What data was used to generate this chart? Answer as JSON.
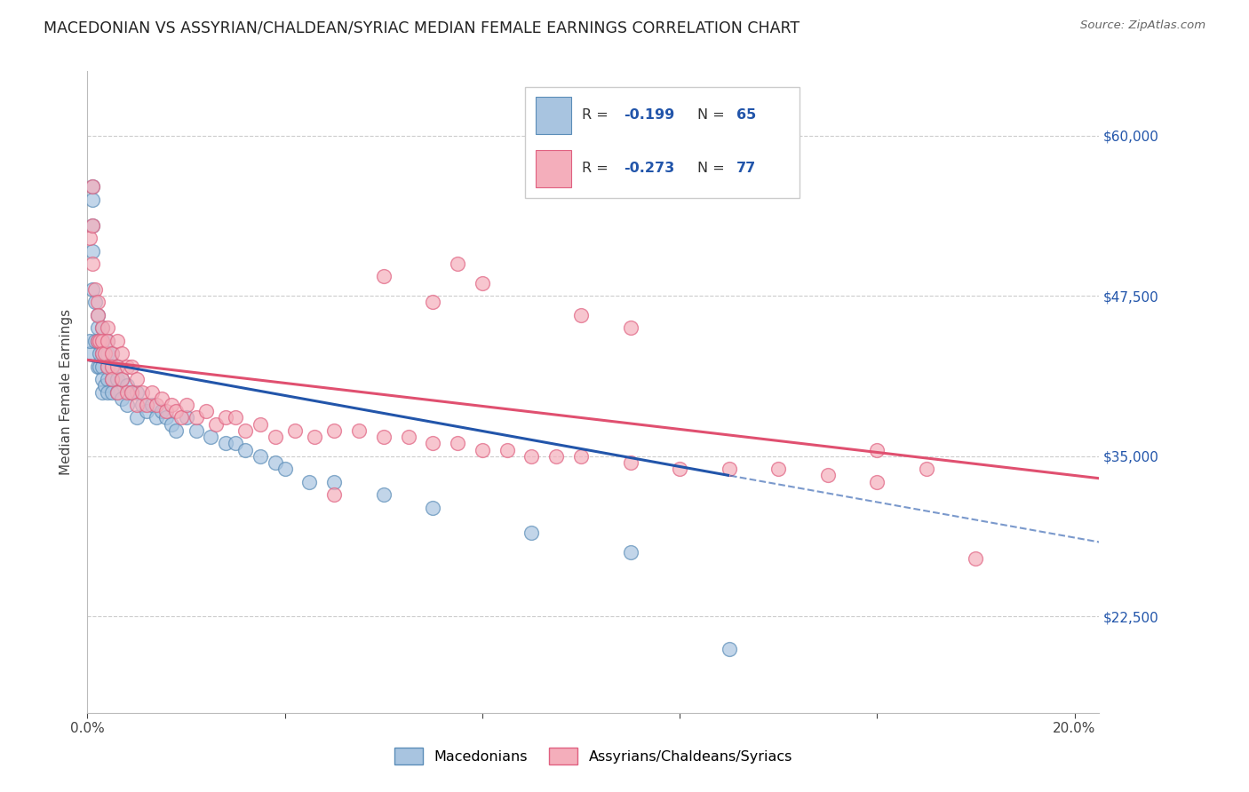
{
  "title": "MACEDONIAN VS ASSYRIAN/CHALDEAN/SYRIAC MEDIAN FEMALE EARNINGS CORRELATION CHART",
  "source": "Source: ZipAtlas.com",
  "ylabel": "Median Female Earnings",
  "xlim": [
    0.0,
    0.205
  ],
  "ylim": [
    15000,
    65000
  ],
  "yticks": [
    22500,
    35000,
    47500,
    60000
  ],
  "ytick_labels": [
    "$22,500",
    "$35,000",
    "$47,500",
    "$60,000"
  ],
  "xticks": [
    0.0,
    0.04,
    0.08,
    0.12,
    0.16,
    0.2
  ],
  "xtick_labels": [
    "0.0%",
    "",
    "",
    "",
    "",
    "20.0%"
  ],
  "legend_r1": "-0.199",
  "legend_n1": "65",
  "legend_r2": "-0.273",
  "legend_n2": "77",
  "legend_label1": "Macedonians",
  "legend_label2": "Assyrians/Chaldeans/Syriacs",
  "blue_color": "#A8C4E0",
  "pink_color": "#F4AEBB",
  "blue_edge_color": "#5B8DB8",
  "pink_edge_color": "#E06080",
  "blue_line_color": "#2255AA",
  "pink_line_color": "#E05070",
  "blue_x": [
    0.0005,
    0.0005,
    0.001,
    0.001,
    0.001,
    0.001,
    0.001,
    0.0015,
    0.0015,
    0.002,
    0.002,
    0.002,
    0.002,
    0.0025,
    0.0025,
    0.003,
    0.003,
    0.003,
    0.003,
    0.003,
    0.003,
    0.0035,
    0.004,
    0.004,
    0.004,
    0.004,
    0.004,
    0.005,
    0.005,
    0.005,
    0.005,
    0.006,
    0.006,
    0.006,
    0.007,
    0.007,
    0.008,
    0.008,
    0.009,
    0.01,
    0.01,
    0.011,
    0.012,
    0.013,
    0.014,
    0.015,
    0.016,
    0.017,
    0.018,
    0.02,
    0.022,
    0.025,
    0.028,
    0.03,
    0.032,
    0.035,
    0.038,
    0.04,
    0.045,
    0.05,
    0.06,
    0.07,
    0.09,
    0.11,
    0.13
  ],
  "blue_y": [
    43000,
    44000,
    56000,
    55000,
    53000,
    51000,
    48000,
    47000,
    44000,
    46000,
    45000,
    44000,
    42000,
    43000,
    42000,
    45000,
    44000,
    43000,
    42000,
    41000,
    40000,
    40500,
    44000,
    43000,
    42000,
    41000,
    40000,
    43000,
    42000,
    41000,
    40000,
    42000,
    41000,
    40000,
    41000,
    39500,
    40500,
    39000,
    40000,
    40000,
    38000,
    39000,
    38500,
    39000,
    38000,
    38500,
    38000,
    37500,
    37000,
    38000,
    37000,
    36500,
    36000,
    36000,
    35500,
    35000,
    34500,
    34000,
    33000,
    33000,
    32000,
    31000,
    29000,
    27500,
    20000
  ],
  "pink_x": [
    0.0005,
    0.001,
    0.001,
    0.001,
    0.0015,
    0.002,
    0.002,
    0.002,
    0.0025,
    0.003,
    0.003,
    0.003,
    0.0035,
    0.004,
    0.004,
    0.004,
    0.005,
    0.005,
    0.005,
    0.006,
    0.006,
    0.006,
    0.007,
    0.007,
    0.008,
    0.008,
    0.009,
    0.009,
    0.01,
    0.01,
    0.011,
    0.012,
    0.013,
    0.014,
    0.015,
    0.016,
    0.017,
    0.018,
    0.019,
    0.02,
    0.022,
    0.024,
    0.026,
    0.028,
    0.03,
    0.032,
    0.035,
    0.038,
    0.042,
    0.046,
    0.05,
    0.055,
    0.06,
    0.065,
    0.07,
    0.075,
    0.08,
    0.085,
    0.09,
    0.095,
    0.1,
    0.11,
    0.12,
    0.13,
    0.14,
    0.15,
    0.16,
    0.17,
    0.05,
    0.06,
    0.07,
    0.075,
    0.08,
    0.1,
    0.11,
    0.16,
    0.18
  ],
  "pink_y": [
    52000,
    56000,
    53000,
    50000,
    48000,
    47000,
    46000,
    44000,
    44000,
    45000,
    44000,
    43000,
    43000,
    45000,
    44000,
    42000,
    43000,
    42000,
    41000,
    44000,
    42000,
    40000,
    43000,
    41000,
    42000,
    40000,
    42000,
    40000,
    41000,
    39000,
    40000,
    39000,
    40000,
    39000,
    39500,
    38500,
    39000,
    38500,
    38000,
    39000,
    38000,
    38500,
    37500,
    38000,
    38000,
    37000,
    37500,
    36500,
    37000,
    36500,
    37000,
    37000,
    36500,
    36500,
    36000,
    36000,
    35500,
    35500,
    35000,
    35000,
    35000,
    34500,
    34000,
    34000,
    34000,
    33500,
    35500,
    34000,
    32000,
    49000,
    47000,
    50000,
    48500,
    46000,
    45000,
    33000,
    27000
  ]
}
